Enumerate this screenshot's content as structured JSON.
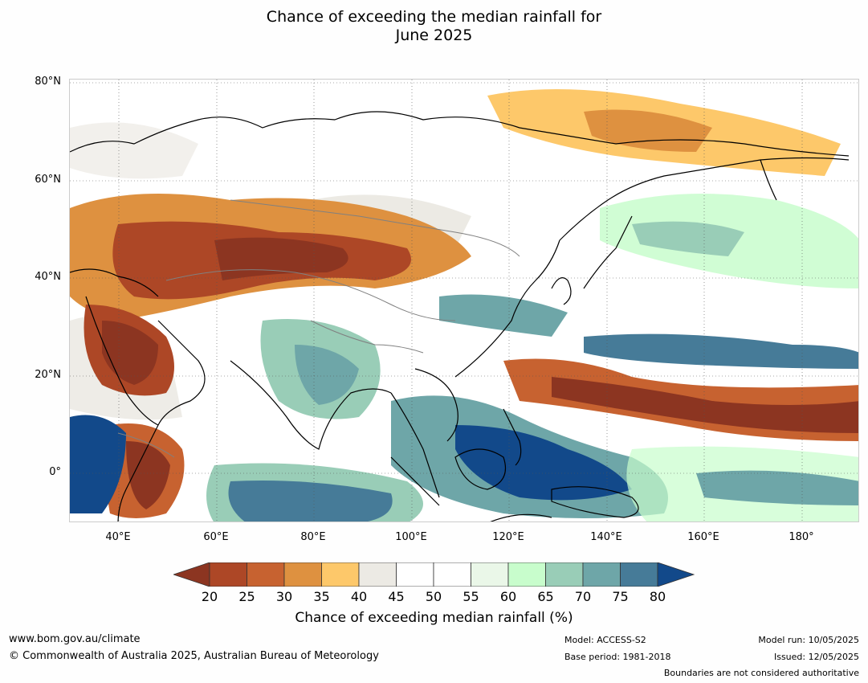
{
  "title_line1": "Chance of exceeding the median rainfall for",
  "title_line2": "June 2025",
  "lat_labels": [
    "80°N",
    "60°N",
    "40°N",
    "20°N",
    "0°"
  ],
  "lon_labels": [
    "40°E",
    "60°E",
    "80°E",
    "100°E",
    "120°E",
    "140°E",
    "160°E",
    "180°"
  ],
  "colorbar": {
    "ticks": [
      "20",
      "25",
      "30",
      "35",
      "40",
      "45",
      "50",
      "55",
      "60",
      "65",
      "70",
      "75",
      "80"
    ],
    "colors": [
      "#8c3521",
      "#ad4726",
      "#c76230",
      "#de9140",
      "#fdc86a",
      "#eceae4",
      "#ffffff",
      "#ffffff",
      "#eaf7e8",
      "#c8fdcc",
      "#99cdb7",
      "#6ea6a8",
      "#467b98",
      "#12498a"
    ],
    "label": "Chance of exceeding median rainfall (%)"
  },
  "footer": {
    "website": "www.bom.gov.au/climate",
    "copyright": "© Commonwealth of Australia 2025, Australian Bureau of Meteorology",
    "model": "Model: ACCESS-S2",
    "base_period": "Base period: 1981-2018",
    "model_run": "Model run: 10/05/2025",
    "issued": "Issued: 12/05/2025",
    "disclaimer": "Boundaries are not considered authoritative"
  }
}
